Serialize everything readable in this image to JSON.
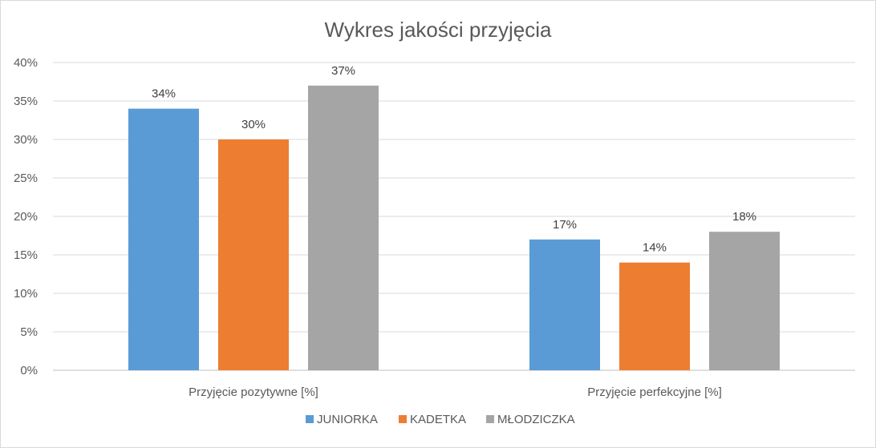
{
  "chart_data": {
    "type": "bar",
    "title": "Wykres jakości przyjęcia",
    "xlabel": "",
    "ylabel": "",
    "categories": [
      "Przyjęcie pozytywne [%]",
      "Przyjęcie perfekcyjne [%]"
    ],
    "series": [
      {
        "name": "JUNIORKA",
        "values": [
          0.34,
          0.17
        ],
        "color": "#5b9bd5",
        "data_labels": [
          "34%",
          "17%"
        ]
      },
      {
        "name": "KADETKA",
        "values": [
          0.3,
          0.14
        ],
        "color": "#ed7d31",
        "data_labels": [
          "30%",
          "14%"
        ]
      },
      {
        "name": "MŁODZICZKA",
        "values": [
          0.37,
          0.18
        ],
        "color": "#a5a5a5",
        "data_labels": [
          "37%",
          "18%"
        ]
      }
    ],
    "ylim": [
      0,
      0.4
    ],
    "yticks": [
      0,
      0.05,
      0.1,
      0.15,
      0.2,
      0.25,
      0.3,
      0.35,
      0.4
    ],
    "ytick_labels": [
      "0%",
      "5%",
      "10%",
      "15%",
      "20%",
      "25%",
      "30%",
      "35%",
      "40%"
    ],
    "grid": true,
    "legend_position": "bottom"
  }
}
